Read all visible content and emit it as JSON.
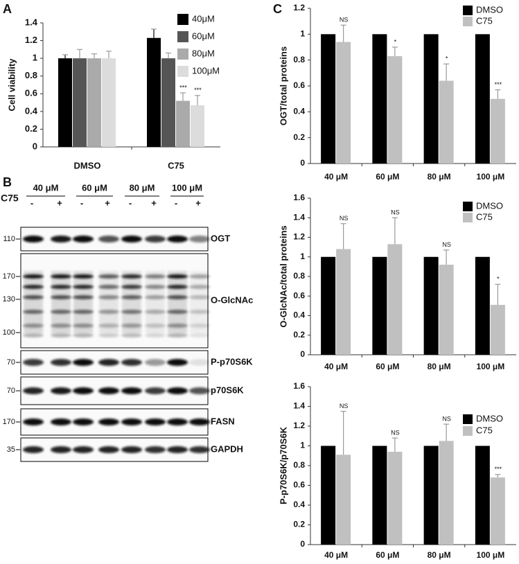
{
  "chart_data": [
    {
      "type": "bar",
      "panel": "A",
      "ylabel": "Cell viability",
      "categories": [
        "DMSO",
        "C75"
      ],
      "series": [
        {
          "name": "40μM",
          "color": "#000000",
          "values": [
            1,
            1.23
          ],
          "errors": [
            0.04,
            0.1
          ],
          "annotations": [
            null,
            null
          ]
        },
        {
          "name": "60μM",
          "color": "#555555",
          "values": [
            1,
            1.0
          ],
          "errors": [
            0.1,
            0.06
          ],
          "annotations": [
            null,
            null
          ]
        },
        {
          "name": "80μM",
          "color": "#aaaaaa",
          "values": [
            1,
            0.52
          ],
          "errors": [
            0.05,
            0.09
          ],
          "annotations": [
            null,
            "***"
          ]
        },
        {
          "name": "100μM",
          "color": "#dcdcdc",
          "values": [
            1,
            0.47
          ],
          "errors": [
            0.08,
            0.11
          ],
          "annotations": [
            null,
            "***"
          ]
        }
      ],
      "ylim": [
        0,
        1.4
      ],
      "yticks": [
        0,
        0.2,
        0.4,
        0.6,
        0.8,
        1,
        1.2,
        1.4
      ],
      "legend": "top-right"
    },
    {
      "type": "bar",
      "panel": "C",
      "ylabel": "OGT/total proteins",
      "categories": [
        "40 μM",
        "60 μM",
        "80 μM",
        "100 μM"
      ],
      "series": [
        {
          "name": "DMSO",
          "color": "#000000",
          "values": [
            1,
            1,
            1,
            1
          ]
        },
        {
          "name": "C75",
          "color": "#c0c0c0",
          "values": [
            0.94,
            0.83,
            0.64,
            0.5
          ],
          "errors": [
            0.13,
            0.07,
            0.13,
            0.07
          ],
          "annotations": [
            "NS",
            "*",
            "*",
            "***"
          ]
        }
      ],
      "ylim": [
        0,
        1.2
      ],
      "yticks": [
        0,
        0.2,
        0.4,
        0.6,
        0.8,
        1,
        1.2
      ],
      "legend": "top-right"
    },
    {
      "type": "bar",
      "ylabel": "O-GlcNAc/total proteins",
      "categories": [
        "40 μM",
        "60 μM",
        "80 μM",
        "100 μM"
      ],
      "series": [
        {
          "name": "DMSO",
          "color": "#000000",
          "values": [
            1,
            1,
            1,
            1
          ]
        },
        {
          "name": "C75",
          "color": "#c0c0c0",
          "values": [
            1.08,
            1.13,
            0.92,
            0.51
          ],
          "errors": [
            0.26,
            0.27,
            0.15,
            0.21
          ],
          "annotations": [
            "NS",
            "NS",
            "NS",
            "*"
          ]
        }
      ],
      "ylim": [
        0,
        1.6
      ],
      "yticks": [
        0,
        0.2,
        0.4,
        0.6,
        0.8,
        1,
        1.2,
        1.4,
        1.6
      ],
      "legend": "top-right"
    },
    {
      "type": "bar",
      "ylabel": "P-p70S6K/p70S6K",
      "categories": [
        "40 μM",
        "60 μM",
        "80 μM",
        "100 μM"
      ],
      "series": [
        {
          "name": "DMSO",
          "color": "#000000",
          "values": [
            1,
            1,
            1,
            1
          ]
        },
        {
          "name": "C75",
          "color": "#c0c0c0",
          "values": [
            0.91,
            0.94,
            1.05,
            0.68
          ],
          "errors": [
            0.44,
            0.14,
            0.17,
            0.03
          ],
          "annotations": [
            "NS",
            "NS",
            "NS",
            "***"
          ]
        }
      ],
      "ylim": [
        0,
        1.6
      ],
      "yticks": [
        0,
        0.2,
        0.4,
        0.6,
        0.8,
        1,
        1.2,
        1.4,
        1.6
      ],
      "legend": "top-right"
    }
  ],
  "blot": {
    "panel": "B",
    "treatment": "C75",
    "doses": [
      "40 μM",
      "60 μM",
      "80 μM",
      "100 μM"
    ],
    "lanes": [
      "-",
      "+",
      "-",
      "+",
      "-",
      "+",
      "-",
      "+"
    ],
    "rows": [
      {
        "name": "OGT",
        "markers": [
          110
        ]
      },
      {
        "name": "O-GlcNAc",
        "markers": [
          170,
          130,
          100
        ]
      },
      {
        "name": "P-p70S6K",
        "markers": [
          70
        ]
      },
      {
        "name": "p70S6K",
        "markers": [
          70
        ]
      },
      {
        "name": "FASN",
        "markers": [
          170
        ]
      },
      {
        "name": "GAPDH",
        "markers": [
          35
        ]
      }
    ]
  }
}
